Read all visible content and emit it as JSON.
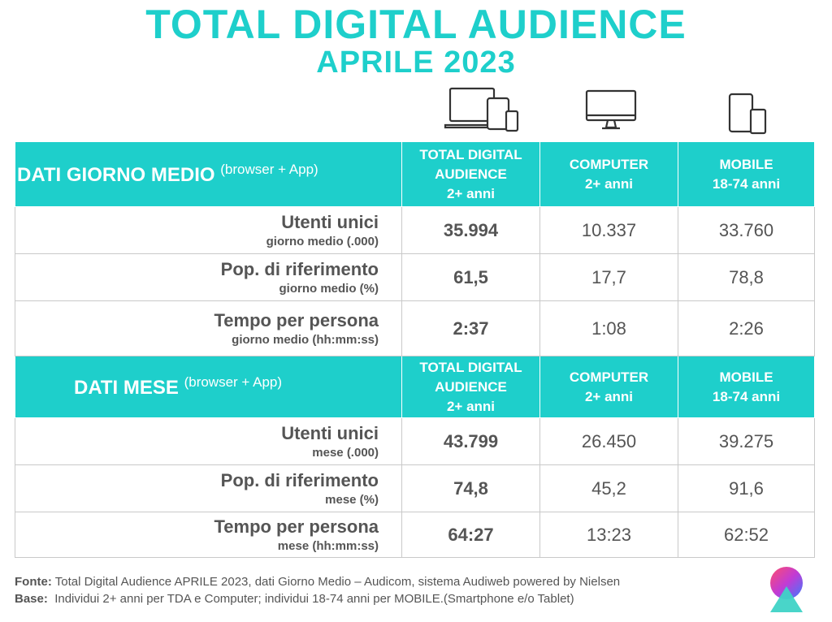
{
  "title": "TOTAL DIGITAL AUDIENCE",
  "subtitle": "APRILE 2023",
  "icons": [
    "devices-icon",
    "computer-icon",
    "mobile-icon"
  ],
  "accent_color": "#1ecfcb",
  "columns": {
    "tda_line1": "TOTAL DIGITAL",
    "tda_line2": "AUDIENCE",
    "tda_line3": "2+ anni",
    "computer_line1": "COMPUTER",
    "computer_line2": "2+ anni",
    "mobile_line1": "MOBILE",
    "mobile_line2": "18-74 anni"
  },
  "sections": [
    {
      "title": "DATI GIORNO MEDIO",
      "suffix": "(browser + App)",
      "rows": [
        {
          "label": "Utenti unici",
          "sublabel": "giorno medio (.000)",
          "tda": "35.994",
          "computer": "10.337",
          "mobile": "33.760"
        },
        {
          "label": "Pop. di riferimento",
          "sublabel": "giorno medio (%)",
          "tda": "61,5",
          "computer": "17,7",
          "mobile": "78,8"
        },
        {
          "label": "Tempo per persona",
          "sublabel": "giorno medio (hh:mm:ss)",
          "tda": "2:37",
          "computer": "1:08",
          "mobile": "2:26"
        }
      ]
    },
    {
      "title": "DATI MESE",
      "suffix": "(browser + App)",
      "rows": [
        {
          "label": "Utenti unici",
          "sublabel": "mese (.000)",
          "tda": "43.799",
          "computer": "26.450",
          "mobile": "39.275"
        },
        {
          "label": "Pop. di riferimento",
          "sublabel": "mese (%)",
          "tda": "74,8",
          "computer": "45,2",
          "mobile": "91,6"
        },
        {
          "label": "Tempo per persona",
          "sublabel": "mese (hh:mm:ss)",
          "tda": "64:27",
          "computer": "13:23",
          "mobile": "62:52"
        }
      ]
    }
  ],
  "footer": {
    "fonte_label": "Fonte:",
    "fonte_text": " Total Digital Audience APRILE 2023, dati Giorno Medio – Audicom, sistema Audiweb powered by Nielsen",
    "base_label": "Base:",
    "base_text": "  Individui 2+ anni per TDA e Computer; individui 18-74 anni per MOBILE.(Smartphone e/o Tablet)"
  }
}
